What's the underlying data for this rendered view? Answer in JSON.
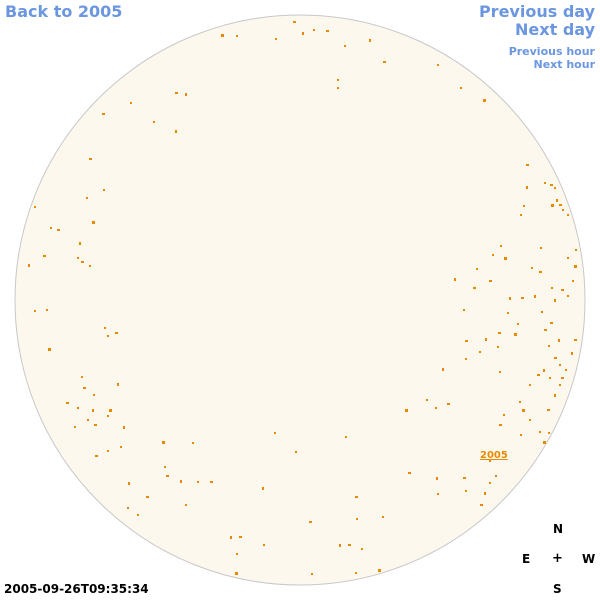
{
  "nav": {
    "back_label": "Back to 2005",
    "prev_day_label": "Previous day",
    "next_day_label": "Next day",
    "prev_hour_label": "Previous hour",
    "next_hour_label": "Next hour"
  },
  "disk": {
    "fill_color": "#fdf8ed",
    "stroke_color": "#c8c8c8",
    "spot_color": "#e88a00",
    "year_label": "2005"
  },
  "compass": {
    "north": "N",
    "east": "E",
    "center": "+",
    "west": "W",
    "south": "S"
  },
  "timestamp": "2005-09-26T09:35:34",
  "colors": {
    "link": "#6b96e0",
    "text": "#000000"
  }
}
